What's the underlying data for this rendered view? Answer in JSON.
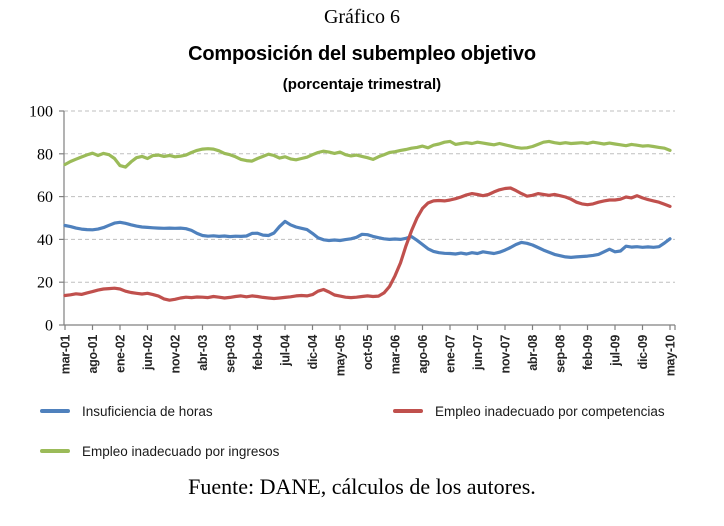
{
  "figure_label": "Gráfico 6",
  "source_note": "Fuente: DANE, cálculos de los autores.",
  "colors": {
    "hours_line": "#4F81BD",
    "competencias_line": "#C0504D",
    "ingresos_line": "#9BBB59",
    "gridline": "#BFBFBF",
    "axis": "#808080",
    "background": "#FFFFFF"
  },
  "legend": {
    "items": [
      {
        "label": "Insuficiencia de horas",
        "color": "#4F81BD"
      },
      {
        "label": "Empleo inadecuado por competencias",
        "color": "#C0504D"
      },
      {
        "label": "Empleo inadecuado por ingresos",
        "color": "#9BBB59"
      }
    ]
  },
  "chart_data": {
    "type": "line",
    "title": "Composición del subempleo objetivo",
    "subtitle": "(porcentaje trimestral)",
    "xlabel": "",
    "ylabel": "",
    "ylim": [
      0,
      100
    ],
    "y_ticks": [
      0,
      20,
      40,
      60,
      80,
      100
    ],
    "grid": "horizontal dashed",
    "legend_position": "bottom two-column",
    "x_unit": "monthly moving quarter, mar-2001 to may-2010",
    "x_tick_every_n_points": 5,
    "x_tick_labels": [
      "mar-01",
      "ago-01",
      "ene-02",
      "jun-02",
      "nov-02",
      "abr-03",
      "sep-03",
      "feb-04",
      "jul-04",
      "dic-04",
      "may-05",
      "oct-05",
      "mar-06",
      "ago-06",
      "ene-07",
      "jun-07",
      "nov-07",
      "abr-08",
      "sep-08",
      "feb-09",
      "jul-09",
      "dic-09",
      "may-10"
    ],
    "series": [
      {
        "name": "Insuficiencia de horas",
        "color": "#4F81BD",
        "values": [
          46.5,
          46.0,
          45.3,
          44.8,
          44.6,
          44.5,
          44.8,
          45.5,
          46.6,
          47.6,
          48.0,
          47.5,
          46.8,
          46.2,
          45.8,
          45.6,
          45.4,
          45.3,
          45.2,
          45.3,
          45.2,
          45.3,
          45.0,
          44.2,
          42.8,
          41.8,
          41.5,
          41.7,
          41.4,
          41.6,
          41.3,
          41.5,
          41.4,
          41.6,
          42.8,
          42.9,
          42.0,
          41.8,
          43.0,
          46.0,
          48.4,
          46.8,
          45.8,
          45.2,
          44.6,
          42.8,
          40.8,
          39.8,
          39.5,
          39.7,
          39.5,
          39.9,
          40.3,
          41.0,
          42.4,
          42.2,
          41.4,
          40.8,
          40.3,
          40.0,
          40.2,
          40.0,
          40.5,
          41.3,
          39.6,
          37.6,
          35.6,
          34.4,
          33.8,
          33.5,
          33.4,
          33.2,
          33.6,
          33.2,
          33.8,
          33.4,
          34.2,
          33.8,
          33.4,
          34.0,
          35.0,
          36.2,
          37.6,
          38.6,
          38.2,
          37.4,
          36.2,
          35.0,
          34.0,
          33.0,
          32.4,
          31.8,
          31.6,
          31.8,
          32.0,
          32.2,
          32.5,
          33.0,
          34.2,
          35.4,
          34.2,
          34.6,
          36.8,
          36.4,
          36.6,
          36.3,
          36.5,
          36.3,
          36.6,
          38.3,
          40.3
        ]
      },
      {
        "name": "Empleo inadecuado por competencias",
        "color": "#C0504D",
        "values": [
          13.8,
          14.1,
          14.6,
          14.3,
          15.0,
          15.6,
          16.3,
          16.8,
          17.0,
          17.2,
          16.8,
          15.8,
          15.2,
          14.8,
          14.5,
          14.8,
          14.2,
          13.5,
          12.2,
          11.6,
          12.0,
          12.6,
          13.0,
          12.8,
          13.1,
          13.0,
          12.8,
          13.3,
          13.0,
          12.6,
          12.9,
          13.3,
          13.6,
          13.2,
          13.6,
          13.3,
          12.9,
          12.6,
          12.4,
          12.6,
          12.9,
          13.2,
          13.6,
          13.8,
          13.6,
          14.2,
          15.8,
          16.6,
          15.4,
          14.0,
          13.5,
          13.0,
          12.8,
          13.0,
          13.3,
          13.6,
          13.3,
          13.5,
          15.0,
          18.0,
          23.0,
          29.0,
          37.0,
          44.0,
          50.0,
          54.5,
          57.0,
          58.0,
          58.2,
          58.0,
          58.4,
          59.0,
          59.8,
          60.8,
          61.4,
          61.0,
          60.4,
          61.0,
          62.2,
          63.2,
          63.8,
          64.0,
          62.8,
          61.4,
          60.2,
          60.6,
          61.4,
          61.0,
          60.6,
          61.0,
          60.4,
          59.8,
          58.8,
          57.4,
          56.6,
          56.2,
          56.6,
          57.4,
          58.0,
          58.4,
          58.4,
          58.8,
          59.8,
          59.4,
          60.4,
          59.4,
          58.6,
          58.0,
          57.4,
          56.4,
          55.4
        ]
      },
      {
        "name": "Empleo inadecuado por ingresos",
        "color": "#9BBB59",
        "values": [
          75.0,
          76.4,
          77.5,
          78.5,
          79.5,
          80.3,
          79.2,
          80.2,
          79.6,
          77.8,
          74.5,
          73.8,
          76.2,
          78.2,
          78.8,
          77.8,
          79.2,
          79.4,
          78.8,
          79.2,
          78.6,
          78.9,
          79.4,
          80.6,
          81.6,
          82.2,
          82.4,
          82.2,
          81.4,
          80.2,
          79.6,
          78.6,
          77.4,
          76.8,
          76.6,
          77.8,
          78.8,
          79.8,
          79.2,
          78.0,
          78.6,
          77.6,
          77.2,
          77.8,
          78.4,
          79.6,
          80.6,
          81.2,
          80.8,
          80.2,
          80.8,
          79.6,
          79.0,
          79.4,
          78.8,
          78.2,
          77.4,
          78.6,
          79.6,
          80.6,
          81.0,
          81.6,
          82.0,
          82.6,
          83.0,
          83.6,
          82.8,
          84.0,
          84.6,
          85.4,
          85.8,
          84.4,
          84.8,
          85.2,
          84.8,
          85.4,
          85.0,
          84.6,
          84.2,
          84.8,
          84.2,
          83.6,
          83.0,
          82.6,
          82.8,
          83.4,
          84.4,
          85.4,
          85.8,
          85.2,
          84.8,
          85.2,
          84.8,
          85.0,
          85.2,
          84.8,
          85.4,
          85.0,
          84.6,
          85.0,
          84.6,
          84.2,
          83.8,
          84.4,
          84.0,
          83.6,
          83.8,
          83.4,
          83.0,
          82.6,
          81.6
        ]
      }
    ]
  }
}
